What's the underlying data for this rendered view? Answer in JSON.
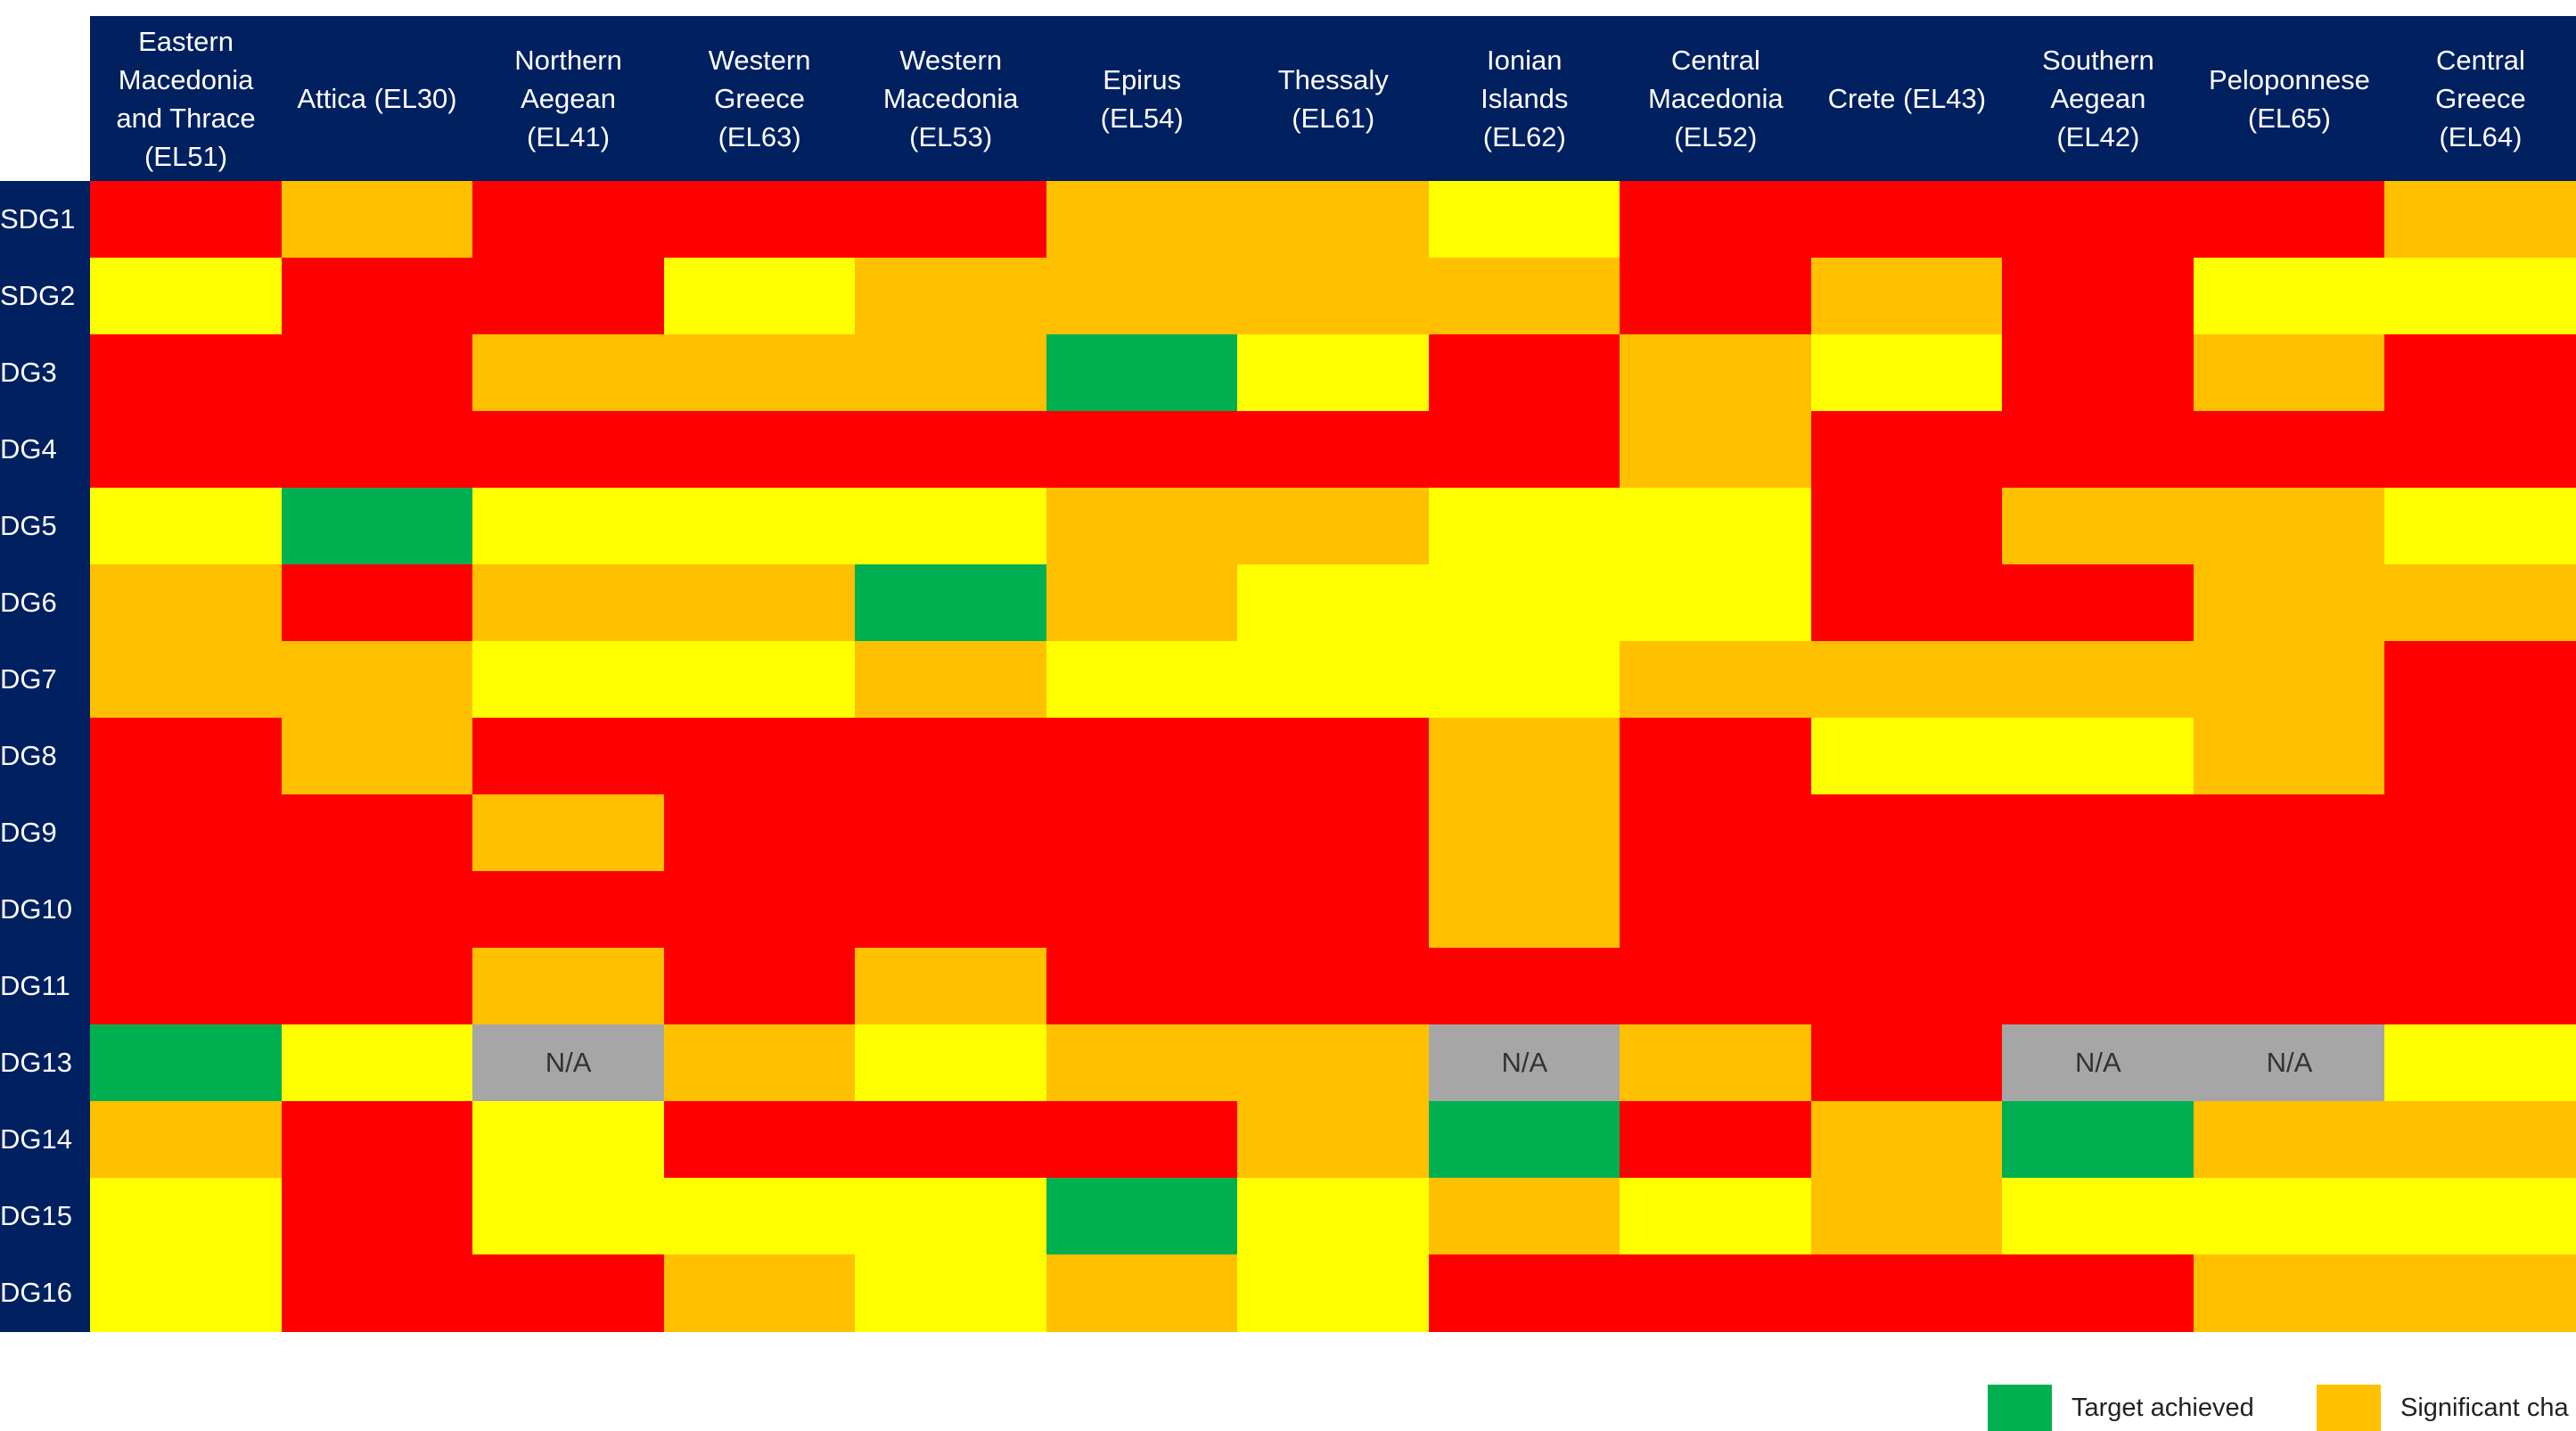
{
  "table": {
    "columns": [
      "Eastern Macedonia and Thrace (EL51)",
      "Attica (EL30)",
      "Northern Aegean (EL41)",
      "Western Greece (EL63)",
      "Western Macedonia (EL53)",
      "Epirus (EL54)",
      "Thessaly (EL61)",
      "Ionian Islands (EL62)",
      "Central Macedonia (EL52)",
      "Crete (EL43)",
      "Southern Aegean (EL42)",
      "Peloponnese (EL65)",
      "Central Greece (EL64)"
    ],
    "rows": [
      {
        "label": "SDG1",
        "cells": [
          "#ff0000",
          "#ffc000",
          "#ff0000",
          "#ff0000",
          "#ff0000",
          "#ffc000",
          "#ffc000",
          "#ffff00",
          "#ff0000",
          "#ff0000",
          "#ff0000",
          "#ff0000",
          "#ffc000"
        ]
      },
      {
        "label": "SDG2",
        "cells": [
          "#ffff00",
          "#ff0000",
          "#ff0000",
          "#ffff00",
          "#ffc000",
          "#ffc000",
          "#ffc000",
          "#ffc000",
          "#ff0000",
          "#ffc000",
          "#ff0000",
          "#ffff00",
          "#ffff00"
        ]
      },
      {
        "label": "DG3",
        "cells": [
          "#ff0000",
          "#ff0000",
          "#ffc000",
          "#ffc000",
          "#ffc000",
          "#00b050",
          "#ffff00",
          "#ff0000",
          "#ffc000",
          "#ffff00",
          "#ff0000",
          "#ffc000",
          "#ff0000"
        ]
      },
      {
        "label": "DG4",
        "cells": [
          "#ff0000",
          "#ff0000",
          "#ff0000",
          "#ff0000",
          "#ff0000",
          "#ff0000",
          "#ff0000",
          "#ff0000",
          "#ffc000",
          "#ff0000",
          "#ff0000",
          "#ff0000",
          "#ff0000"
        ]
      },
      {
        "label": "DG5",
        "cells": [
          "#ffff00",
          "#00b050",
          "#ffff00",
          "#ffff00",
          "#ffff00",
          "#ffc000",
          "#ffc000",
          "#ffff00",
          "#ffff00",
          "#ff0000",
          "#ffc000",
          "#ffc000",
          "#ffff00"
        ]
      },
      {
        "label": "DG6",
        "cells": [
          "#ffc000",
          "#ff0000",
          "#ffc000",
          "#ffc000",
          "#00b050",
          "#ffc000",
          "#ffff00",
          "#ffff00",
          "#ffff00",
          "#ff0000",
          "#ff0000",
          "#ffc000",
          "#ffc000"
        ]
      },
      {
        "label": "DG7",
        "cells": [
          "#ffc000",
          "#ffc000",
          "#ffff00",
          "#ffff00",
          "#ffc000",
          "#ffff00",
          "#ffff00",
          "#ffff00",
          "#ffc000",
          "#ffc000",
          "#ffc000",
          "#ffc000",
          "#ff0000"
        ]
      },
      {
        "label": "DG8",
        "cells": [
          "#ff0000",
          "#ffc000",
          "#ff0000",
          "#ff0000",
          "#ff0000",
          "#ff0000",
          "#ff0000",
          "#ffc000",
          "#ff0000",
          "#ffff00",
          "#ffff00",
          "#ffc000",
          "#ff0000"
        ]
      },
      {
        "label": "DG9",
        "cells": [
          "#ff0000",
          "#ff0000",
          "#ffc000",
          "#ff0000",
          "#ff0000",
          "#ff0000",
          "#ff0000",
          "#ffc000",
          "#ff0000",
          "#ff0000",
          "#ff0000",
          "#ff0000",
          "#ff0000"
        ]
      },
      {
        "label": "DG10",
        "cells": [
          "#ff0000",
          "#ff0000",
          "#ff0000",
          "#ff0000",
          "#ff0000",
          "#ff0000",
          "#ff0000",
          "#ffc000",
          "#ff0000",
          "#ff0000",
          "#ff0000",
          "#ff0000",
          "#ff0000"
        ]
      },
      {
        "label": "DG11",
        "cells": [
          "#ff0000",
          "#ff0000",
          "#ffc000",
          "#ff0000",
          "#ffc000",
          "#ff0000",
          "#ff0000",
          "#ff0000",
          "#ff0000",
          "#ff0000",
          "#ff0000",
          "#ff0000",
          "#ff0000"
        ]
      },
      {
        "label": "DG13",
        "cells": [
          "#00b050",
          "#ffff00",
          {
            "color": "#a6a6a6",
            "text": "N/A"
          },
          "#ffc000",
          "#ffff00",
          "#ffc000",
          "#ffc000",
          {
            "color": "#a6a6a6",
            "text": "N/A"
          },
          "#ffc000",
          "#ff0000",
          {
            "color": "#a6a6a6",
            "text": "N/A"
          },
          {
            "color": "#a6a6a6",
            "text": "N/A"
          },
          "#ffff00"
        ]
      },
      {
        "label": "DG14",
        "cells": [
          "#ffc000",
          "#ff0000",
          "#ffff00",
          "#ff0000",
          "#ff0000",
          "#ff0000",
          "#ffc000",
          "#00b050",
          "#ff0000",
          "#ffc000",
          "#00b050",
          "#ffc000",
          "#ffc000"
        ]
      },
      {
        "label": "DG15",
        "cells": [
          "#ffff00",
          "#ff0000",
          "#ffff00",
          "#ffff00",
          "#ffff00",
          "#00b050",
          "#ffff00",
          "#ffc000",
          "#ffff00",
          "#ffc000",
          "#ffff00",
          "#ffff00",
          "#ffff00"
        ]
      },
      {
        "label": "DG16",
        "cells": [
          "#ffff00",
          "#ff0000",
          "#ff0000",
          "#ffc000",
          "#ffff00",
          "#ffc000",
          "#ffff00",
          "#ff0000",
          "#ff0000",
          "#ff0000",
          "#ff0000",
          "#ffc000",
          "#ffc000"
        ]
      }
    ]
  },
  "legend": [
    {
      "label": "Target achieved",
      "color": "#00b050"
    },
    {
      "label": "Significant cha",
      "color": "#ffc000"
    }
  ]
}
